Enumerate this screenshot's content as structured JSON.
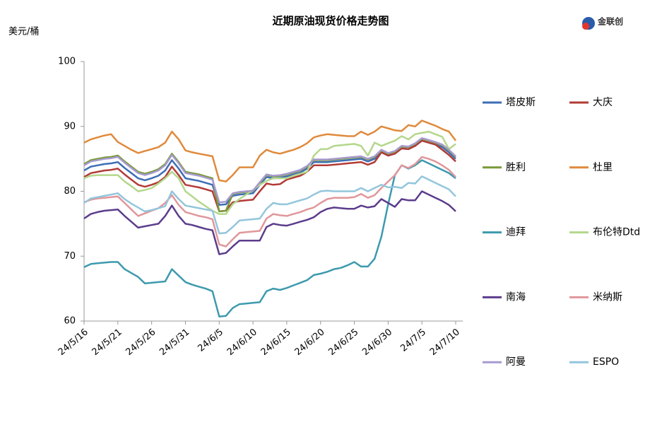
{
  "logo": "金联创",
  "chart_data": {
    "type": "line",
    "title": "近期原油现货价格走势图",
    "y_label": "美元/桶",
    "categories": [
      "24/5/16",
      null,
      null,
      null,
      null,
      "24/5/21",
      null,
      null,
      null,
      null,
      "24/5/26",
      null,
      null,
      null,
      null,
      "24/5/31",
      null,
      null,
      null,
      null,
      "24/6/5",
      null,
      null,
      null,
      null,
      "24/6/10",
      null,
      null,
      null,
      null,
      "24/6/15",
      null,
      null,
      null,
      null,
      "24/6/20",
      null,
      null,
      null,
      null,
      "24/6/25",
      null,
      null,
      null,
      null,
      "24/6/30",
      null,
      null,
      null,
      null,
      "24/7/5",
      null,
      null,
      null,
      null,
      "24/7/10"
    ],
    "ylim": [
      60,
      100
    ],
    "yticks": [
      60,
      70,
      80,
      90,
      100
    ],
    "grid": false,
    "series": [
      {
        "name": "塔皮斯",
        "color": "#3e6db5",
        "values": [
          83.2,
          83.8,
          84.0,
          84.2,
          84.3,
          84.5,
          83.6,
          82.8,
          82.0,
          81.7,
          82.0,
          82.4,
          83.2,
          84.8,
          83.5,
          82.0,
          81.8,
          81.6,
          81.3,
          81.0,
          77.9,
          78.0,
          79.3,
          79.5,
          79.6,
          79.7,
          81.0,
          82.2,
          82.0,
          82.1,
          82.3,
          82.6,
          82.9,
          83.5,
          84.5,
          84.5,
          84.5,
          84.6,
          84.7,
          84.8,
          84.9,
          85.0,
          84.6,
          85.0,
          86.0,
          85.5,
          85.8,
          86.6,
          86.5,
          87.0,
          87.8,
          87.5,
          87.2,
          86.8,
          86.0,
          85.0
        ]
      },
      {
        "name": "大庆",
        "color": "#b23b36",
        "values": [
          82.2,
          82.8,
          83.0,
          83.2,
          83.3,
          83.5,
          82.6,
          81.8,
          81.0,
          80.7,
          81.0,
          81.4,
          82.2,
          83.8,
          82.5,
          81.0,
          80.8,
          80.6,
          80.3,
          80.0,
          76.9,
          77.0,
          78.3,
          78.5,
          78.6,
          78.7,
          80.0,
          81.2,
          81.0,
          81.1,
          81.8,
          82.1,
          82.4,
          83.0,
          84.0,
          84.0,
          84.0,
          84.1,
          84.2,
          84.3,
          84.4,
          84.5,
          84.1,
          84.5,
          86.0,
          85.5,
          85.8,
          86.6,
          86.5,
          87.0,
          87.8,
          87.5,
          87.2,
          86.4,
          85.6,
          84.6
        ]
      },
      {
        "name": "胜利",
        "color": "#7a9a38",
        "values": [
          84.2,
          84.8,
          85.0,
          85.2,
          85.3,
          85.5,
          84.6,
          83.8,
          83.0,
          82.7,
          83.0,
          83.4,
          84.2,
          85.8,
          84.5,
          83.0,
          82.8,
          82.6,
          82.3,
          82.0,
          76.9,
          77.0,
          79.6,
          79.8,
          79.9,
          80.0,
          81.3,
          82.5,
          82.3,
          82.4,
          82.6,
          82.9,
          83.2,
          83.8,
          84.8,
          84.8,
          84.8,
          84.9,
          85.0,
          85.1,
          85.2,
          85.3,
          84.9,
          85.3,
          86.3,
          85.8,
          86.1,
          86.9,
          86.8,
          87.3,
          88.1,
          87.8,
          87.5,
          87.1,
          86.3,
          85.3
        ]
      },
      {
        "name": "杜里",
        "color": "#e08a3c",
        "values": [
          87.5,
          88.0,
          88.3,
          88.6,
          88.8,
          87.6,
          87.0,
          86.4,
          85.9,
          86.2,
          86.5,
          86.8,
          87.5,
          89.2,
          88.0,
          86.3,
          86.0,
          85.8,
          85.6,
          85.4,
          81.7,
          81.5,
          82.5,
          83.7,
          83.7,
          83.7,
          85.5,
          86.4,
          86.0,
          85.8,
          86.1,
          86.4,
          86.8,
          87.4,
          88.3,
          88.6,
          88.8,
          88.7,
          88.6,
          88.5,
          88.5,
          89.2,
          88.7,
          89.2,
          90.0,
          89.7,
          89.4,
          89.3,
          90.2,
          90.0,
          90.9,
          90.5,
          90.1,
          89.6,
          89.2,
          87.8
        ]
      },
      {
        "name": "迪拜",
        "color": "#3d9aae",
        "values": [
          68.3,
          68.8,
          68.9,
          69.0,
          69.1,
          69.1,
          68.0,
          67.4,
          66.8,
          65.8,
          65.9,
          66.0,
          66.1,
          68.0,
          67.0,
          66.0,
          65.6,
          65.3,
          65.0,
          64.6,
          60.7,
          60.8,
          62.0,
          62.6,
          62.7,
          62.8,
          62.9,
          64.6,
          65.0,
          64.8,
          65.1,
          65.5,
          65.9,
          66.3,
          67.1,
          67.3,
          67.6,
          68.0,
          68.2,
          68.6,
          69.1,
          68.4,
          68.4,
          69.6,
          73.0,
          78.0,
          82.5,
          84.0,
          83.5,
          84.0,
          84.8,
          84.3,
          83.8,
          83.3,
          82.8,
          82.0
        ]
      },
      {
        "name": "布伦特Dtd",
        "color": "#b4d78c",
        "values": [
          82.0,
          82.4,
          82.5,
          82.5,
          82.5,
          82.5,
          81.5,
          80.8,
          80.0,
          80.2,
          80.5,
          81.2,
          82.0,
          83.0,
          82.0,
          80.0,
          79.2,
          78.4,
          77.7,
          77.0,
          76.5,
          76.5,
          78.0,
          78.8,
          79.5,
          80.2,
          81.0,
          81.6,
          82.0,
          82.0,
          82.0,
          82.4,
          82.7,
          83.0,
          85.5,
          86.5,
          86.5,
          87.0,
          87.1,
          87.2,
          87.3,
          87.0,
          85.5,
          87.5,
          87.0,
          87.4,
          87.8,
          88.5,
          88.0,
          88.8,
          89.0,
          89.2,
          88.8,
          88.4,
          86.5,
          87.3
        ]
      },
      {
        "name": "南海",
        "color": "#5c3d8c",
        "values": [
          75.8,
          76.5,
          76.8,
          77.0,
          77.1,
          77.2,
          76.2,
          75.3,
          74.4,
          74.6,
          74.8,
          75.0,
          76.2,
          77.8,
          76.2,
          75.0,
          74.8,
          74.5,
          74.2,
          74.0,
          70.3,
          70.5,
          71.5,
          72.4,
          72.4,
          72.4,
          72.4,
          74.5,
          75.0,
          74.8,
          74.7,
          75.0,
          75.3,
          75.6,
          76.0,
          76.8,
          77.3,
          77.5,
          77.4,
          77.3,
          77.3,
          77.8,
          77.5,
          77.7,
          78.8,
          78.2,
          77.6,
          78.8,
          78.6,
          78.6,
          80.0,
          79.5,
          79.0,
          78.5,
          77.9,
          76.9
        ]
      },
      {
        "name": "米纳斯",
        "color": "#e0979b",
        "values": [
          78.3,
          78.7,
          78.9,
          79.0,
          79.1,
          79.2,
          78.2,
          77.2,
          76.2,
          76.6,
          77.0,
          77.4,
          78.2,
          79.4,
          77.9,
          76.8,
          76.5,
          76.2,
          76.0,
          75.7,
          71.8,
          71.5,
          72.6,
          73.6,
          73.7,
          73.8,
          73.9,
          75.8,
          76.5,
          76.3,
          76.2,
          76.5,
          76.8,
          77.2,
          77.5,
          78.2,
          78.8,
          79.0,
          79.0,
          79.0,
          79.1,
          79.6,
          79.0,
          79.4,
          80.5,
          81.5,
          82.5,
          84.0,
          83.6,
          84.2,
          85.3,
          85.0,
          84.6,
          84.0,
          83.3,
          82.2
        ]
      },
      {
        "name": "阿曼",
        "color": "#a89ad0",
        "values": [
          84.0,
          84.6,
          84.8,
          85.0,
          85.1,
          85.3,
          84.4,
          83.6,
          82.8,
          82.5,
          82.8,
          83.2,
          84.0,
          85.6,
          84.3,
          82.8,
          82.6,
          82.4,
          82.1,
          81.8,
          78.3,
          78.4,
          79.7,
          79.9,
          80.0,
          80.1,
          81.4,
          82.6,
          82.4,
          82.5,
          82.7,
          83.0,
          83.3,
          83.9,
          84.9,
          84.9,
          84.9,
          85.0,
          85.1,
          85.2,
          85.3,
          85.4,
          85.0,
          85.4,
          86.4,
          85.9,
          86.2,
          87.0,
          86.9,
          87.4,
          88.2,
          87.9,
          87.6,
          87.2,
          86.4,
          85.4
        ]
      },
      {
        "name": "ESPO",
        "color": "#93c6dc",
        "values": [
          78.2,
          78.9,
          79.1,
          79.3,
          79.5,
          79.7,
          78.8,
          78.1,
          77.5,
          76.9,
          77.1,
          77.4,
          77.7,
          80.0,
          78.8,
          77.8,
          77.6,
          77.4,
          77.2,
          77.0,
          73.5,
          73.6,
          74.5,
          75.5,
          75.6,
          75.7,
          75.8,
          77.3,
          78.2,
          78.0,
          78.0,
          78.3,
          78.6,
          78.9,
          79.5,
          80.0,
          80.1,
          80.0,
          80.0,
          80.0,
          80.0,
          80.5,
          80.0,
          80.5,
          81.0,
          80.6,
          80.7,
          80.5,
          81.3,
          81.2,
          82.3,
          81.8,
          81.3,
          80.8,
          80.3,
          79.2
        ]
      }
    ]
  }
}
